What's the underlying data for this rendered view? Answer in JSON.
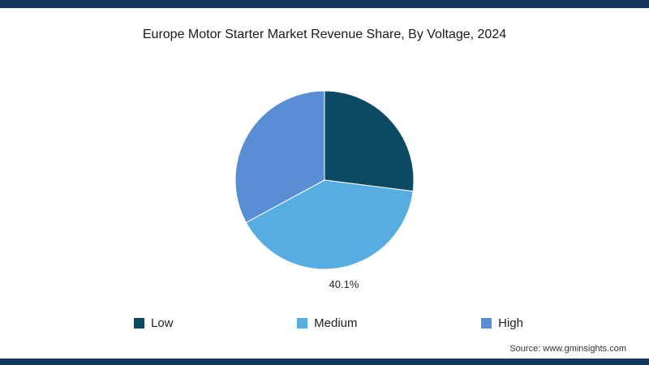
{
  "page": {
    "source": "Source: www.gminsights.com"
  },
  "colors": {
    "accent_bar": "#14375c",
    "slice_low": "#0c4a63",
    "slice_medium": "#57ace0",
    "slice_high": "#5a8ed4",
    "background": "#ffffff"
  },
  "chart_data": {
    "type": "pie",
    "title": "Europe Motor Starter Market Revenue Share, By Voltage, 2024",
    "legend_position": "bottom",
    "start_angle_deg": 0,
    "direction": "clockwise",
    "slices": [
      {
        "label": "Low",
        "value": 27.0,
        "color": "#0c4a63",
        "data_label": ""
      },
      {
        "label": "Medium",
        "value": 40.1,
        "color": "#57ace0",
        "data_label": "40.1%"
      },
      {
        "label": "High",
        "value": 32.9,
        "color": "#5a8ed4",
        "data_label": ""
      }
    ]
  }
}
